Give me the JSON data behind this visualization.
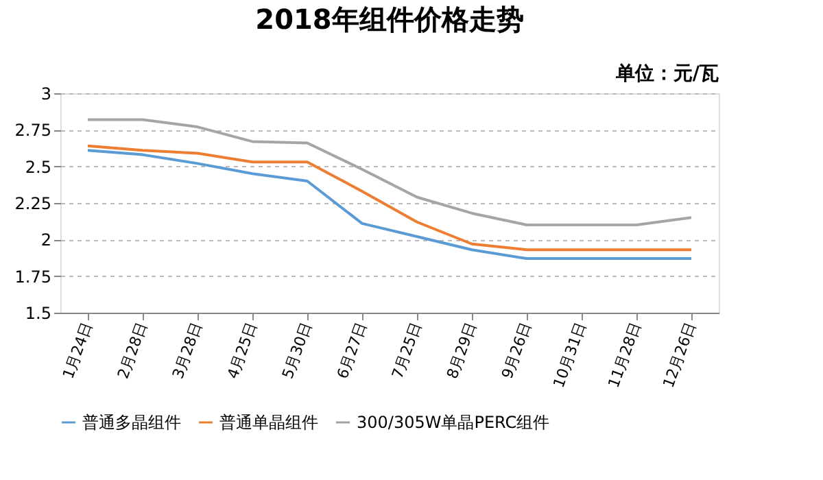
{
  "chart_data": {
    "type": "line",
    "title": "2018年组件价格走势",
    "annotations": [
      "单位：元/瓦"
    ],
    "categories": [
      "1月24日",
      "2月28日",
      "3月28日",
      "4月25日",
      "5月30日",
      "6月27日",
      "7月25日",
      "8月29日",
      "9月26日",
      "10月31日",
      "11月28日",
      "12月26日"
    ],
    "series": [
      {
        "name": "普通多晶组件",
        "color": "#5b9bd5",
        "values": [
          2.61,
          2.58,
          2.52,
          2.45,
          2.4,
          2.11,
          2.02,
          1.93,
          1.87,
          1.87,
          1.87,
          1.87
        ]
      },
      {
        "name": "普通单晶组件",
        "color": "#ed7d31",
        "values": [
          2.64,
          2.61,
          2.59,
          2.53,
          2.53,
          2.33,
          2.12,
          1.97,
          1.93,
          1.93,
          1.93,
          1.93
        ]
      },
      {
        "name": "300/305W单晶PERC组件",
        "color": "#a5a5a5",
        "values": [
          2.82,
          2.82,
          2.77,
          2.67,
          2.66,
          2.48,
          2.29,
          2.18,
          2.1,
          2.1,
          2.1,
          2.15
        ]
      }
    ],
    "ylim": [
      1.5,
      3
    ],
    "yticks": [
      1.5,
      1.75,
      2,
      2.25,
      2.5,
      2.75,
      3
    ],
    "grid": "y",
    "legend": "bottom",
    "marker": "none",
    "line_style": "solid"
  }
}
